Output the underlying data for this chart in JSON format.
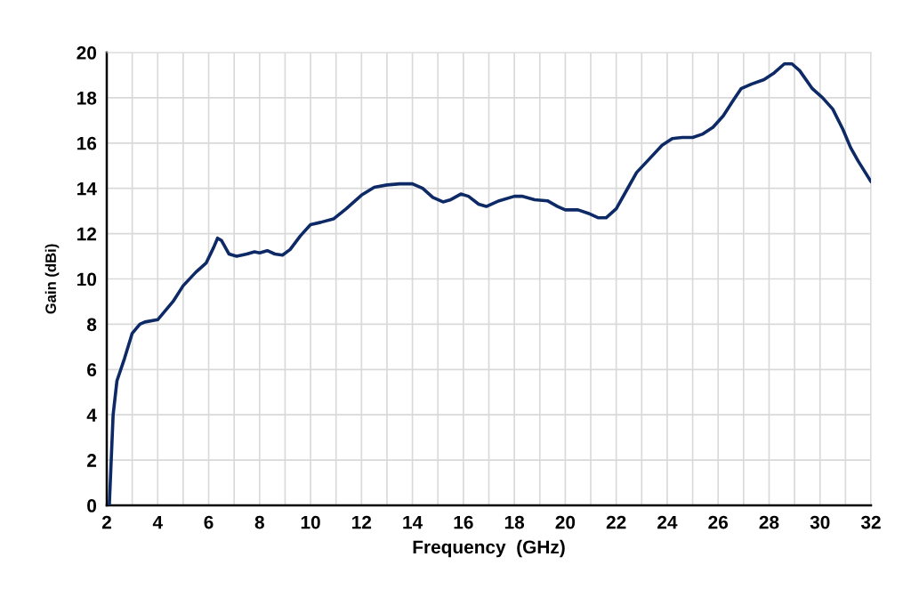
{
  "chart_data": {
    "type": "line",
    "xlabel": "Frequency  (GHz)",
    "ylabel": "Gain (dBi)",
    "xlim": [
      2,
      32
    ],
    "ylim": [
      0,
      20
    ],
    "xticks": [
      2,
      {
        "value": 3,
        "label": null
      },
      4,
      {
        "value": 5,
        "label": null
      },
      6,
      {
        "value": 7,
        "label": null
      },
      8,
      {
        "value": 9,
        "label": null
      },
      10,
      {
        "value": 11,
        "label": null
      },
      12,
      {
        "value": 13,
        "label": null
      },
      14,
      {
        "value": 15,
        "label": null
      },
      16,
      {
        "value": 17,
        "label": null
      },
      18,
      {
        "value": 19,
        "label": null
      },
      20,
      {
        "value": 21,
        "label": null
      },
      22,
      {
        "value": 23,
        "label": null
      },
      24,
      {
        "value": 25,
        "label": null
      },
      26,
      {
        "value": 27,
        "label": null
      },
      28,
      {
        "value": 29,
        "label": null
      },
      30,
      {
        "value": 31,
        "label": null
      },
      32
    ],
    "yticks": [
      0,
      2,
      4,
      6,
      8,
      10,
      12,
      14,
      16,
      18,
      20
    ],
    "grid": true,
    "marker": "none",
    "line_style": "solid",
    "series": [
      {
        "color": "#0d2a66",
        "x": [
          2.1,
          2.25,
          2.4,
          2.7,
          3.0,
          3.3,
          3.5,
          4.0,
          4.3,
          4.6,
          5.0,
          5.5,
          5.9,
          6.2,
          6.35,
          6.5,
          6.8,
          7.1,
          7.5,
          7.8,
          8.0,
          8.3,
          8.6,
          8.9,
          9.2,
          9.6,
          10.0,
          10.4,
          10.9,
          11.4,
          12.0,
          12.5,
          13.0,
          13.5,
          14.0,
          14.4,
          14.8,
          15.2,
          15.5,
          15.9,
          16.2,
          16.6,
          16.9,
          17.4,
          18.0,
          18.3,
          18.8,
          19.3,
          19.7,
          20.0,
          20.5,
          20.9,
          21.3,
          21.6,
          22.0,
          22.4,
          22.8,
          23.3,
          23.8,
          24.2,
          24.6,
          25.0,
          25.4,
          25.8,
          26.2,
          26.6,
          26.9,
          27.3,
          27.8,
          28.2,
          28.6,
          28.9,
          29.2,
          29.7,
          30.1,
          30.5,
          30.9,
          31.2,
          31.5,
          32.0
        ],
        "values": [
          0,
          4,
          5.5,
          6.5,
          7.6,
          8.0,
          8.1,
          8.2,
          8.6,
          9.0,
          9.7,
          10.3,
          10.7,
          11.4,
          11.8,
          11.7,
          11.1,
          11.0,
          11.1,
          11.2,
          11.15,
          11.25,
          11.1,
          11.05,
          11.3,
          11.9,
          12.4,
          12.5,
          12.65,
          13.1,
          13.7,
          14.05,
          14.15,
          14.2,
          14.2,
          14.0,
          13.6,
          13.4,
          13.5,
          13.75,
          13.65,
          13.3,
          13.2,
          13.45,
          13.65,
          13.65,
          13.5,
          13.45,
          13.2,
          13.05,
          13.05,
          12.9,
          12.7,
          12.7,
          13.1,
          13.9,
          14.7,
          15.3,
          15.9,
          16.2,
          16.25,
          16.25,
          16.4,
          16.7,
          17.2,
          17.9,
          18.4,
          18.6,
          18.8,
          19.1,
          19.5,
          19.5,
          19.2,
          18.4,
          18.0,
          17.5,
          16.6,
          15.8,
          15.2,
          14.3
        ]
      }
    ]
  }
}
